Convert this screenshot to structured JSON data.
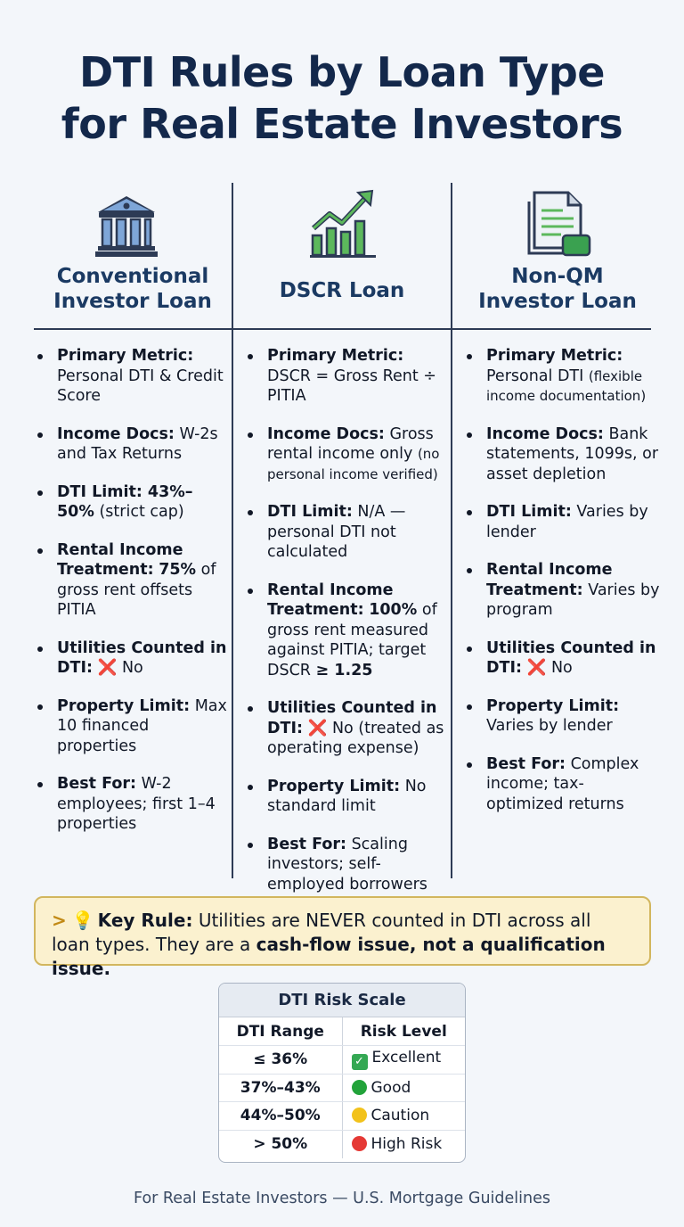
{
  "title": {
    "line1": "DTI Rules by Loan Type",
    "line2": "for Real Estate Investors"
  },
  "columns": [
    {
      "icon": "bank-building-icon",
      "header_line1": "Conventional",
      "header_line2": "Investor Loan",
      "items": [
        {
          "label": "Primary Metric:",
          "text": "Personal DTI & Credit Score"
        },
        {
          "label": "Income Docs:",
          "text": "W-2s and Tax Returns"
        },
        {
          "label": "DTI Limit: 43%–50%",
          "text": "(strict cap)"
        },
        {
          "label": "Rental Income Treatment:",
          "bold_value": "75%",
          "text": "of gross rent offsets PITIA"
        },
        {
          "label": "Utilities Counted in DTI:",
          "mark": "❌",
          "text": "No"
        },
        {
          "label": "Property Limit:",
          "text": "Max 10 financed properties"
        },
        {
          "label": "Best For:",
          "text": "W-2 employees; first 1–4 properties"
        }
      ]
    },
    {
      "icon": "growth-chart-icon",
      "header_line1": "DSCR Loan",
      "items": [
        {
          "label": "Primary Metric:",
          "text": "DSCR = Gross Rent ÷ PITIA"
        },
        {
          "label": "Income Docs:",
          "text": "Gross rental income only",
          "small": "(no personal income verified)"
        },
        {
          "label": "DTI Limit:",
          "text": "N/A — personal DTI not calculated"
        },
        {
          "label": "Rental Income Treatment:",
          "bold_value": "100%",
          "text": "of gross rent measured against PITIA; target DSCR",
          "bold_tail": "≥ 1.25"
        },
        {
          "label": "Utilities Counted in DTI:",
          "mark": "❌",
          "text": "No (treated as operating expense)"
        },
        {
          "label": "Property Limit:",
          "text": "No standard limit"
        },
        {
          "label": "Best For:",
          "text": "Scaling investors; self-employed borrowers"
        }
      ]
    },
    {
      "icon": "document-icon",
      "header_line1": "Non-QM",
      "header_line2": "Investor Loan",
      "items": [
        {
          "label": "Primary Metric:",
          "text": "Personal DTI",
          "small": "(flexible income documentation)"
        },
        {
          "label": "Income Docs:",
          "text": "Bank statements, 1099s, or asset depletion"
        },
        {
          "label": "DTI Limit:",
          "text": "Varies by lender"
        },
        {
          "label": "Rental Income Treatment:",
          "text": "Varies by program"
        },
        {
          "label": "Utilities Counted in DTI:",
          "mark": "❌",
          "text": "No"
        },
        {
          "label": "Property Limit:",
          "text": "Varies by lender"
        },
        {
          "label": "Best For:",
          "text": "Complex income; tax-optimized returns"
        }
      ]
    }
  ],
  "key_rule": {
    "prefix": ">",
    "icon": "lightbulb-icon",
    "label": "Key Rule:",
    "text": "Utilities are NEVER counted in DTI across all loan types. They are a",
    "bold_text": "cash-flow issue, not a qualification issue."
  },
  "risk_scale": {
    "title": "DTI Risk Scale",
    "headers": [
      "DTI Range",
      "Risk Level"
    ],
    "rows": [
      {
        "range": "≤ 36%",
        "level": "Excellent",
        "indicator": "check",
        "color": "#34a853"
      },
      {
        "range": "37%–43%",
        "level": "Good",
        "indicator": "dot",
        "color": "#22a33a"
      },
      {
        "range": "44%–50%",
        "level": "Caution",
        "indicator": "dot",
        "color": "#f2c21b"
      },
      {
        "range": "> 50%",
        "level": "High Risk",
        "indicator": "dot",
        "color": "#e53935"
      }
    ]
  },
  "footer": "For Real Estate Investors — U.S. Mortgage Guidelines"
}
